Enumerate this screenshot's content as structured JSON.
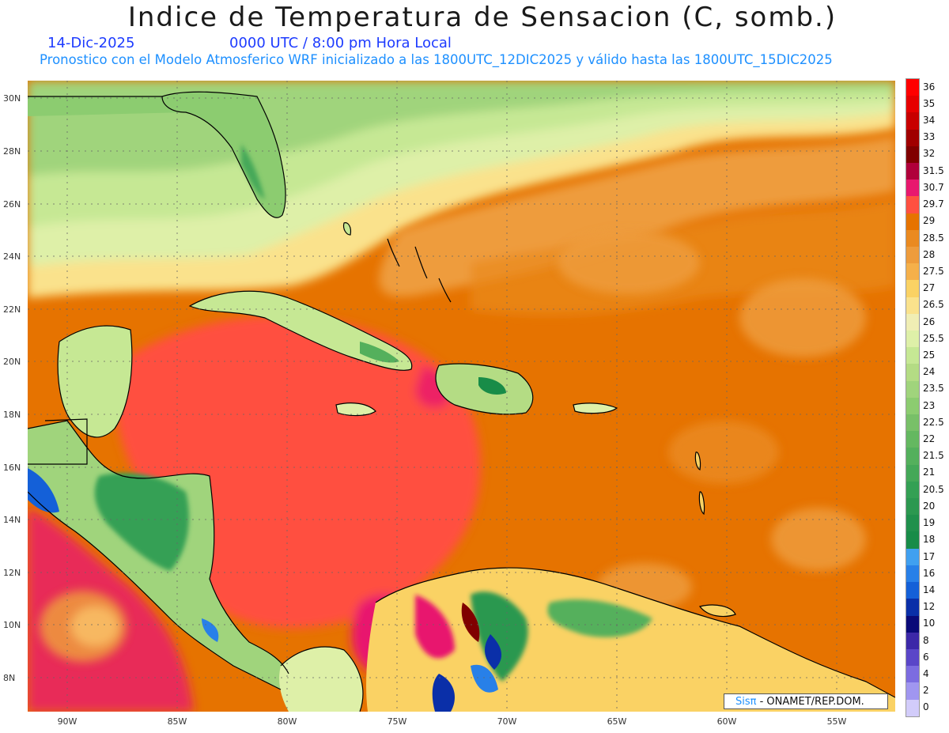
{
  "title": "Indice de Temperatura de Sensacion (C, somb.)",
  "date": "14-Dic-2025",
  "time": "0000 UTC / 8:00 pm Hora Local",
  "subtitle": "Pronostico con el Modelo Atmosferico WRF inicializado a las 1800UTC_12DIC2025 y válido hasta las  1800UTC_15DIC2025",
  "lat_labels": [
    "30N",
    "28N",
    "26N",
    "24N",
    "22N",
    "20N",
    "18N",
    "16N",
    "14N",
    "12N",
    "10N",
    "8N"
  ],
  "lon_labels": [
    "90W",
    "85W",
    "80W",
    "75W",
    "70W",
    "65W",
    "60W",
    "55W"
  ],
  "colorbar": {
    "labels": [
      "36",
      "35",
      "34",
      "33",
      "32",
      "31.5",
      "30.7",
      "29.7",
      "29",
      "28.5",
      "28",
      "27.5",
      "27",
      "26.5",
      "26",
      "25.5",
      "25",
      "24",
      "23.5",
      "23",
      "22.5",
      "22",
      "21.5",
      "21",
      "20.5",
      "20",
      "19",
      "18",
      "17",
      "16",
      "14",
      "12",
      "10",
      "8",
      "6",
      "4",
      "2",
      "0"
    ],
    "colors": [
      "#ff0000",
      "#e60000",
      "#c80000",
      "#a00000",
      "#800000",
      "#b0003a",
      "#e8186e",
      "#ff5040",
      "#e67300",
      "#ea8a20",
      "#ee9c3c",
      "#f5b04a",
      "#fad264",
      "#fae28c",
      "#f0eeb4",
      "#def0a8",
      "#c6e894",
      "#b4dc84",
      "#a0d47c",
      "#8ccc70",
      "#78c068",
      "#64b860",
      "#54b05c",
      "#44a858",
      "#34a054",
      "#2c9850",
      "#20904c",
      "#188c48",
      "#40a0f0",
      "#2880e8",
      "#1460d8",
      "#0a2fa8",
      "#0a0a78",
      "#3c28a8",
      "#5a46c8",
      "#7c6ce0",
      "#a096f0",
      "#d2ccfa"
    ]
  },
  "credit": {
    "brand": "Sisπ",
    "text": "- ONAMET/REP.DOM."
  }
}
